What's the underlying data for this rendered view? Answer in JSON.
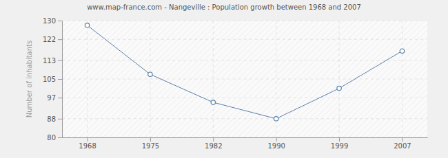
{
  "chart_data": {
    "type": "line",
    "title": "www.map-france.com - Nangeville : Population growth between 1968 and 2007",
    "y_label": "Number of inhabitants",
    "categories": [
      "1968",
      "1975",
      "1982",
      "1990",
      "1999",
      "2007"
    ],
    "values": [
      128,
      107,
      95,
      88,
      101,
      117
    ],
    "color": "#5a7fa8",
    "marker": "circle",
    "ylim": [
      80,
      130
    ],
    "yticks": [
      80,
      88,
      97,
      105,
      113,
      122,
      130
    ],
    "grid": true
  }
}
